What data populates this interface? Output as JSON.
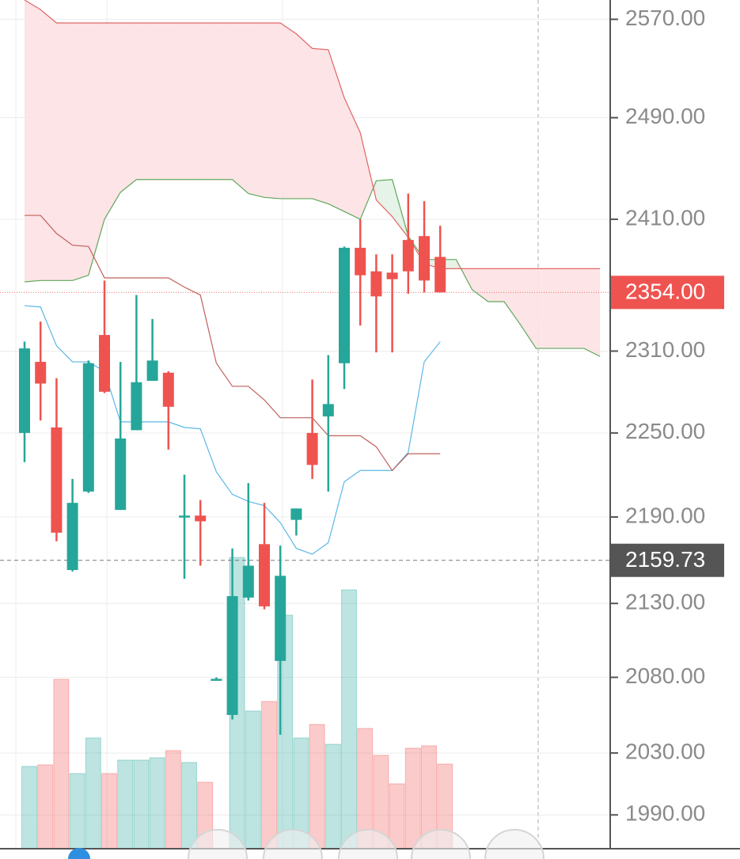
{
  "chart_data": {
    "type": "candlestick",
    "log_scale": true,
    "grid": true,
    "ylim": [
      1969,
      2586
    ],
    "yticks": [
      {
        "value": 1990,
        "label": "1990.00"
      },
      {
        "value": 2030,
        "label": "2030.00"
      },
      {
        "value": 2080,
        "label": "2080.00"
      },
      {
        "value": 2130,
        "label": "2130.00"
      },
      {
        "value": 2190,
        "label": "2190.00"
      },
      {
        "value": 2250,
        "label": "2250.00"
      },
      {
        "value": 2310,
        "label": "2310.00"
      },
      {
        "value": 2410,
        "label": "2410.00"
      },
      {
        "value": 2490,
        "label": "2490.00"
      },
      {
        "value": 2570,
        "label": "2570.00"
      }
    ],
    "up_color": "#26a69a",
    "down_color": "#ef5350",
    "open": [
      2250,
      2302,
      2254,
      2153,
      2208,
      2322,
      2195,
      2252,
      2288,
      2294,
      2190,
      2191,
      2079,
      2055,
      2134,
      2171,
      2091,
      2188,
      2250,
      2262,
      2301,
      2388,
      2370,
      2369,
      2394,
      2397,
      2381
    ],
    "high": [
      2317,
      2332,
      2290,
      2217,
      2303,
      2363,
      2302,
      2352,
      2334,
      2295,
      2220,
      2202,
      2080,
      2168,
      2214,
      2200,
      2170,
      2196,
      2289,
      2307,
      2389,
      2410,
      2383,
      2383,
      2430,
      2424,
      2405
    ],
    "low": [
      2229,
      2259,
      2173,
      2152,
      2207,
      2279,
      2195,
      2252,
      2288,
      2238,
      2147,
      2156,
      2078,
      2052,
      2132,
      2126,
      2042,
      2177,
      2217,
      2208,
      2282,
      2329,
      2309,
      2309,
      2353,
      2354,
      2354
    ],
    "close": [
      2312,
      2286,
      2179,
      2200,
      2301,
      2280,
      2246,
      2287,
      2303,
      2269,
      2191,
      2187,
      2079,
      2135,
      2156,
      2128,
      2149,
      2196,
      2227,
      2271,
      2388,
      2367,
      2351,
      2364,
      2370,
      2363,
      2354
    ],
    "volume": [
      104,
      106,
      214,
      95,
      140,
      95,
      112,
      112,
      115,
      124,
      109,
      84,
      0,
      368,
      174,
      186,
      295,
      140,
      157,
      132,
      327,
      152,
      118,
      82,
      127,
      130,
      107
    ],
    "lines": [
      {
        "color": "#5bb8e8",
        "values": [
          2344,
          2343,
          2314,
          2302,
          2302,
          2295,
          2258,
          2258,
          2258,
          2258,
          2254,
          2253,
          2222,
          2206,
          2201,
          2198,
          2186,
          2168,
          2164,
          2172,
          2215,
          2223,
          2223,
          2223,
          2236,
          2302,
          2317
        ]
      },
      {
        "color": "#c0605a",
        "values": [
          2413,
          2413,
          2399,
          2390,
          2389,
          2365,
          2365,
          2365,
          2365,
          2365,
          2358,
          2352,
          2301,
          2284,
          2284,
          2274,
          2261,
          2261,
          2261,
          2248,
          2248,
          2248,
          2240,
          2223,
          2235,
          2235,
          2235
        ]
      }
    ],
    "cloud": {
      "up_fill": "#e3f2e6",
      "down_fill": "#fde1e3",
      "span_a": {
        "color": "#5fa85a",
        "values": [
          2362,
          2363,
          2363,
          2363,
          2367,
          2410,
          2431,
          2441,
          2441,
          2441,
          2441,
          2441,
          2441,
          2441,
          2430,
          2427,
          2426,
          2426,
          2426,
          2422,
          2416,
          2410,
          2440,
          2441,
          2397,
          2379,
          2379,
          2379,
          2356,
          2347,
          2347,
          2330,
          2312,
          2312,
          2312,
          2312,
          2306
        ]
      },
      "span_b": {
        "color": "#e06666",
        "values": [
          2586,
          2578,
          2567,
          2567,
          2567,
          2567,
          2567,
          2567,
          2567,
          2567,
          2567,
          2567,
          2567,
          2567,
          2567,
          2567,
          2567,
          2558,
          2546,
          2545,
          2506,
          2478,
          2425,
          2412,
          2396,
          2376,
          2372,
          2372,
          2372,
          2372,
          2372,
          2372,
          2372,
          2372,
          2372,
          2372,
          2372
        ]
      }
    },
    "last_price": {
      "value": 2354,
      "label": "2354.00",
      "color": "#ef5350"
    },
    "crosshair_price": {
      "value": 2159.73,
      "label": "2159.73",
      "color": "#555555"
    }
  }
}
